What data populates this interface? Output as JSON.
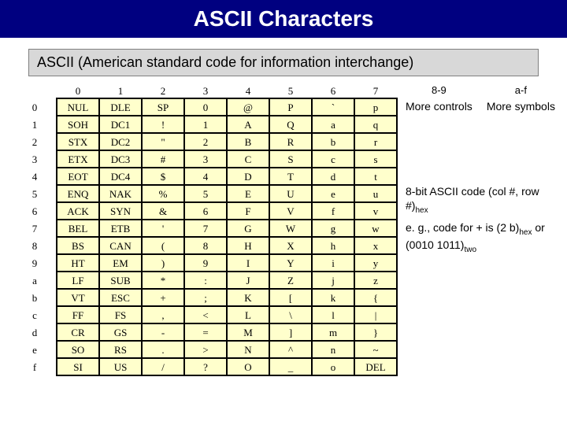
{
  "title": "ASCII Characters",
  "subtitle": "ASCII (American standard code for information interchange)",
  "col_headers": [
    "0",
    "1",
    "2",
    "3",
    "4",
    "5",
    "6",
    "7"
  ],
  "row_headers": [
    "0",
    "1",
    "2",
    "3",
    "4",
    "5",
    "6",
    "7",
    "8",
    "9",
    "a",
    "b",
    "c",
    "d",
    "e",
    "f"
  ],
  "rows": [
    [
      "NUL",
      "DLE",
      "SP",
      "0",
      "@",
      "P",
      "`",
      "p"
    ],
    [
      "SOH",
      "DC1",
      "!",
      "1",
      "A",
      "Q",
      "a",
      "q"
    ],
    [
      "STX",
      "DC2",
      "\"",
      "2",
      "B",
      "R",
      "b",
      "r"
    ],
    [
      "ETX",
      "DC3",
      "#",
      "3",
      "C",
      "S",
      "c",
      "s"
    ],
    [
      "EOT",
      "DC4",
      "$",
      "4",
      "D",
      "T",
      "d",
      "t"
    ],
    [
      "ENQ",
      "NAK",
      "%",
      "5",
      "E",
      "U",
      "e",
      "u"
    ],
    [
      "ACK",
      "SYN",
      "&",
      "6",
      "F",
      "V",
      "f",
      "v"
    ],
    [
      "BEL",
      "ETB",
      "'",
      "7",
      "G",
      "W",
      "g",
      "w"
    ],
    [
      "BS",
      "CAN",
      "(",
      "8",
      "H",
      "X",
      "h",
      "x"
    ],
    [
      "HT",
      "EM",
      ")",
      "9",
      "I",
      "Y",
      "i",
      "y"
    ],
    [
      "LF",
      "SUB",
      "*",
      ":",
      "J",
      "Z",
      "j",
      "z"
    ],
    [
      "VT",
      "ESC",
      "+",
      ";",
      "K",
      "[",
      "k",
      "{"
    ],
    [
      "FF",
      "FS",
      ",",
      "<",
      "L",
      "\\",
      "l",
      "|"
    ],
    [
      "CR",
      "GS",
      "-",
      "=",
      "M",
      "]",
      "m",
      "}"
    ],
    [
      "SO",
      "RS",
      ".",
      ">",
      "N",
      "^",
      "n",
      "~"
    ],
    [
      "SI",
      "US",
      "/",
      "?",
      "O",
      "_",
      "o",
      "DEL"
    ]
  ],
  "side": {
    "c89_hdr": "8-9",
    "c89_txt": "More controls",
    "caf_hdr": "a-f",
    "caf_txt": "More symbols",
    "note1_a": "8-bit ASCII code (col #, row #)",
    "note1_sub": "hex",
    "note2_a": "e. g., code for + is (2 b)",
    "note2_sub1": "hex",
    "note2_b": " or (0010 1011)",
    "note2_sub2": "two"
  },
  "colors": {
    "title_bg": "#000080",
    "title_fg": "#ffffff",
    "cell_bg": "#ffffcc",
    "border": "#000000",
    "subtitle_bg": "#d8d8d8"
  }
}
